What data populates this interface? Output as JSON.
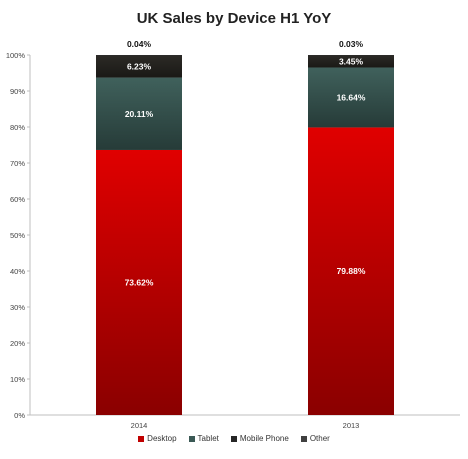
{
  "chart_data": {
    "type": "bar",
    "stacked": true,
    "title": "UK Sales by Device H1 YoY",
    "categories": [
      "2014",
      "2013"
    ],
    "series": [
      {
        "name": "Desktop",
        "values": [
          73.62,
          79.88
        ],
        "labels": [
          "73.62%",
          "79.88%"
        ],
        "color": "#c00000"
      },
      {
        "name": "Tablet",
        "values": [
          20.11,
          16.64
        ],
        "labels": [
          "20.11%",
          "16.64%"
        ],
        "color": "#3b5955"
      },
      {
        "name": "Mobile Phone",
        "values": [
          6.23,
          3.45
        ],
        "labels": [
          "6.23%",
          "3.45%"
        ],
        "color": "#262626"
      },
      {
        "name": "Other",
        "values": [
          0.04,
          0.03
        ],
        "labels": [
          "0.04%",
          "0.03%"
        ],
        "color": "#404040"
      }
    ],
    "ylim": [
      0,
      100
    ],
    "yticks": [
      "0%",
      "10%",
      "20%",
      "30%",
      "40%",
      "50%",
      "60%",
      "70%",
      "80%",
      "90%",
      "100%"
    ],
    "grid": false,
    "legend": "bottom"
  }
}
